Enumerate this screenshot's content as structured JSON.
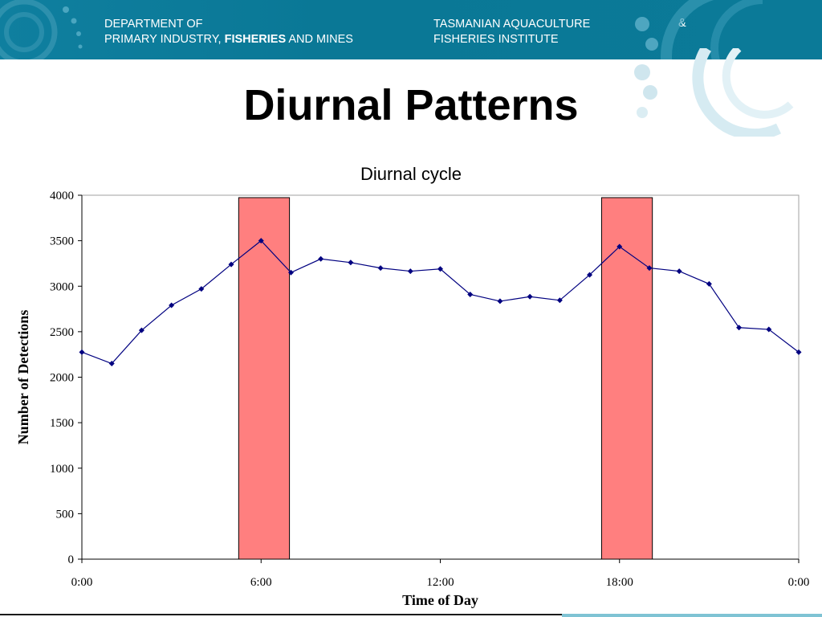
{
  "header": {
    "left_line1": "DEPARTMENT OF",
    "left_line2_pre": "PRIMARY INDUSTRY, ",
    "left_line2_bold": "FISHERIES",
    "left_line2_post": " AND MINES",
    "right_line1": "TASMANIAN AQUACULTURE",
    "right_amp": "&",
    "right_line2": "FISHERIES INSTITUTE"
  },
  "slide": {
    "title": "Diurnal Patterns"
  },
  "colors": {
    "banner": "#0b7a98",
    "series": "#000080",
    "highlight_fill": "#ff7f7f",
    "highlight_stroke": "#000000"
  },
  "chart_data": {
    "type": "line",
    "title": "Diurnal cycle",
    "xlabel": "Time of Day",
    "ylabel": "Number of Detections",
    "xlim": [
      0,
      24
    ],
    "ylim": [
      0,
      4000
    ],
    "x_ticks": [
      0,
      6,
      12,
      18,
      24
    ],
    "x_tick_labels": [
      "0:00",
      "6:00",
      "12:00",
      "18:00",
      "0:00"
    ],
    "y_ticks": [
      0,
      500,
      1000,
      1500,
      2000,
      2500,
      3000,
      3500,
      4000
    ],
    "grid": false,
    "legend": "none",
    "series": [
      {
        "x": [
          0,
          1,
          2,
          3,
          4,
          5,
          6,
          7,
          8,
          9,
          10,
          11,
          12,
          13,
          14,
          15,
          16,
          17,
          18,
          19,
          20,
          21,
          22,
          23,
          24
        ],
        "values": [
          2275,
          2150,
          2515,
          2790,
          2970,
          3240,
          3500,
          3150,
          3300,
          3260,
          3200,
          3165,
          3190,
          2910,
          2835,
          2885,
          2845,
          3125,
          3435,
          3200,
          3165,
          3025,
          2545,
          2525,
          2275
        ]
      }
    ],
    "highlight_bands": [
      {
        "x_start": 5.25,
        "x_end": 6.95
      },
      {
        "x_start": 17.4,
        "x_end": 19.1
      }
    ]
  }
}
